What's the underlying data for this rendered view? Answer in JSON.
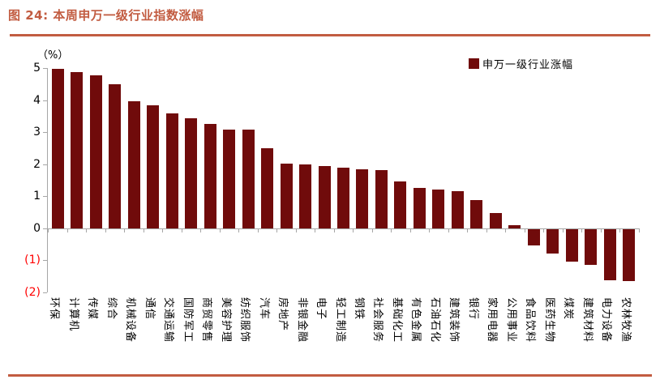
{
  "figure": {
    "title": "图 24:  本周申万一级行业指数涨幅",
    "accent_color": "#C25C41",
    "unit_label": "（%）"
  },
  "legend": {
    "label": "申万一级行业涨幅",
    "marker_color": "#700B0B"
  },
  "chart_data": {
    "type": "bar",
    "title": "本周申万一级行业指数涨幅",
    "xlabel": "",
    "ylabel": "（%）",
    "ylim": [
      -2,
      5
    ],
    "yticks": [
      5,
      4,
      3,
      2,
      1,
      0,
      -1,
      -2
    ],
    "ytick_labels": [
      "5",
      "4",
      "3",
      "2",
      "1",
      "0",
      "(1)",
      "(2)"
    ],
    "negative_tick_color": "#FF0000",
    "bar_color": "#700B0B",
    "grid": false,
    "legend_entries": [
      "申万一级行业涨幅"
    ],
    "legend_position": "top-right",
    "categories": [
      "环保",
      "计算机",
      "传媒",
      "综合",
      "机械设备",
      "通信",
      "交通运输",
      "国防军工",
      "商贸零售",
      "美容护理",
      "纺织服饰",
      "汽车",
      "房地产",
      "非银金融",
      "电子",
      "轻工制造",
      "钢铁",
      "社会服务",
      "基础化工",
      "有色金属",
      "石油石化",
      "建筑装饰",
      "银行",
      "家用电器",
      "公用事业",
      "食品饮料",
      "医药生物",
      "煤炭",
      "建筑材料",
      "电力设备",
      "农林牧渔"
    ],
    "values": [
      4.97,
      4.87,
      4.76,
      4.5,
      3.97,
      3.84,
      3.59,
      3.43,
      3.26,
      3.08,
      3.07,
      2.51,
      2.02,
      2.0,
      1.93,
      1.88,
      1.84,
      1.81,
      1.46,
      1.26,
      1.21,
      1.16,
      0.88,
      0.48,
      0.09,
      -0.53,
      -0.78,
      -1.05,
      -1.13,
      -1.61,
      -1.64
    ]
  }
}
